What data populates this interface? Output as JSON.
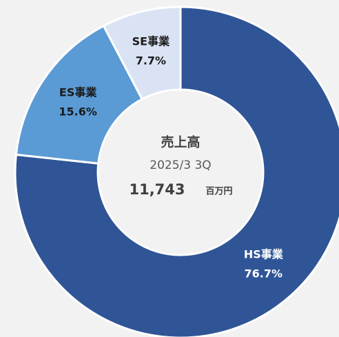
{
  "chart_data": {
    "type": "donut",
    "categories": [
      "HS事業",
      "ES事業",
      "SE事業"
    ],
    "values": [
      76.7,
      15.6,
      7.7
    ],
    "value_labels": [
      "76.7%",
      "15.6%",
      "7.7%"
    ],
    "colors": [
      "#2f5597",
      "#5b9bd5",
      "#dae3f3"
    ],
    "label_colors": [
      "#ffffff",
      "#1a1a1a",
      "#1a1a1a"
    ],
    "center_title": "売上高",
    "center_subtitle": "2025/3 3Q",
    "center_value": 11743,
    "center_value_label": "11,743",
    "center_unit": "百万円"
  }
}
